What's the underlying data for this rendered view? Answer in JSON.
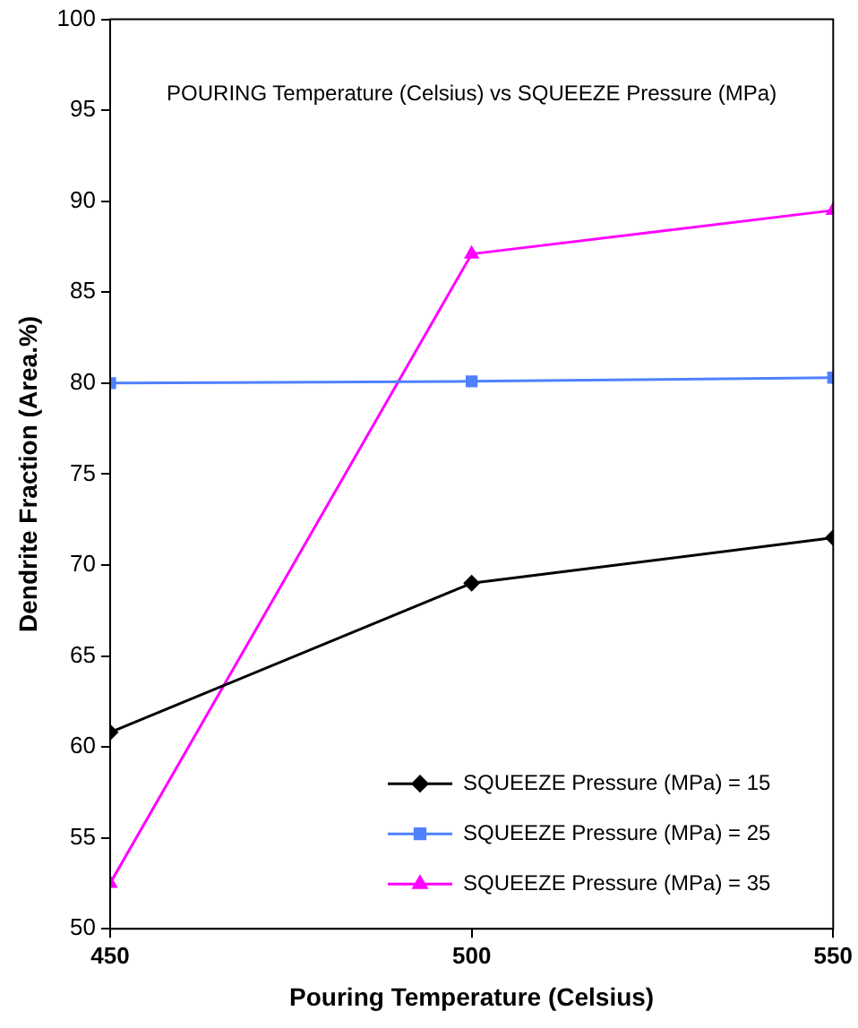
{
  "chart_data": {
    "type": "line",
    "title": "POURING Temperature (Celsius) vs SQUEEZE Pressure (MPa)",
    "xlabel": "Pouring Temperature (Celsius)",
    "ylabel": "Dendrite Fraction (Area.%)",
    "x": [
      450,
      500,
      550
    ],
    "xlim": [
      450,
      550
    ],
    "xticks": [
      450,
      500,
      550
    ],
    "ylim": [
      50,
      100
    ],
    "yticks": [
      50,
      55,
      60,
      65,
      70,
      75,
      80,
      85,
      90,
      95,
      100
    ],
    "series": [
      {
        "name": "SQUEEZE Pressure (MPa) = 15",
        "color": "#000000",
        "marker": "diamond",
        "values": [
          60.8,
          69,
          71.5
        ]
      },
      {
        "name": "SQUEEZE Pressure (MPa) = 25",
        "color": "#4f81ff",
        "marker": "square",
        "values": [
          80,
          80.1,
          80.3
        ]
      },
      {
        "name": "SQUEEZE Pressure (MPa) = 35",
        "color": "#ff00ff",
        "marker": "triangle",
        "values": [
          52.5,
          87.1,
          89.5
        ]
      }
    ],
    "grid": false,
    "legend": "bottom right",
    "line_style": "solid"
  }
}
